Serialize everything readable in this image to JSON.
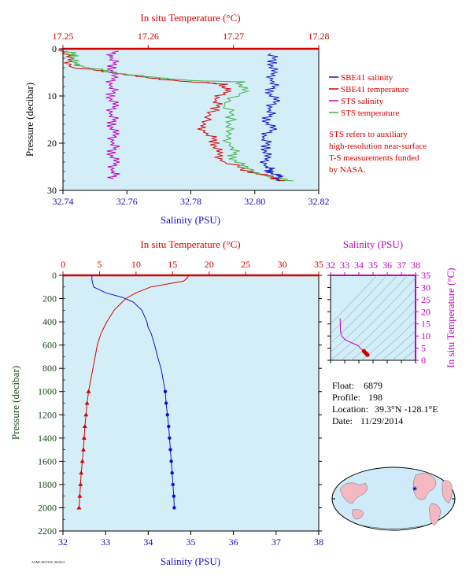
{
  "charts": {
    "top": {
      "top_axis_title": "In situ Temperature (°C)",
      "top_ticks": [
        "17.25",
        "17.26",
        "17.27",
        "17.28"
      ],
      "bottom_axis_title": "Salinity (PSU)",
      "bottom_ticks": [
        "32.74",
        "32.76",
        "32.78",
        "32.80",
        "32.82"
      ],
      "y_axis_title": "Pressure (decibar)",
      "y_ticks": [
        "0",
        "10",
        "20",
        "30"
      ],
      "legend": [
        {
          "label": "SBE41 salinity",
          "color": "#1010c8"
        },
        {
          "label": "SBE41 temperature",
          "color": "#d40000"
        },
        {
          "label": "STS salinity",
          "color": "#c000c0"
        },
        {
          "label": "STS temperature",
          "color": "#40b040"
        }
      ],
      "note": [
        "STS refers to auxiliary",
        "high-resolution near-surface",
        "T-S measurements funded",
        "by NASA."
      ]
    },
    "bottom": {
      "top_axis_title": "In situ Temperature (°C)",
      "top_ticks": [
        "0",
        "5",
        "10",
        "15",
        "20",
        "25",
        "30",
        "35"
      ],
      "bottom_axis_title": "Salinity (PSU)",
      "bottom_ticks": [
        "32",
        "33",
        "34",
        "35",
        "36",
        "37",
        "38"
      ],
      "y_axis_title": "Pressure (decibar)",
      "y_ticks": [
        "0",
        "200",
        "400",
        "600",
        "800",
        "1000",
        "1200",
        "1400",
        "1600",
        "1800",
        "2000",
        "2200"
      ]
    },
    "ts": {
      "top_axis_title": "Salinity (PSU)",
      "top_ticks": [
        "32",
        "33",
        "34",
        "35",
        "36",
        "37",
        "38"
      ],
      "right_axis_title": "In situ Temperature (°C)",
      "right_ticks": [
        "0",
        "5",
        "10",
        "15",
        "20",
        "25",
        "30",
        "35"
      ]
    },
    "info": {
      "float_label": "Float:",
      "float_value": "6879",
      "profile_label": "Profile:",
      "profile_value": "198",
      "location_label": "Location:",
      "location_value": "39.3°N  -128.1°E",
      "date_label": "Date:",
      "date_value": "11/29/2014"
    },
    "footer_code": "AOML/SIO/UW, 06/2014"
  },
  "chart_data": [
    {
      "type": "line",
      "y_axis": "Pressure (decibar)",
      "ylim": [
        30,
        0
      ],
      "x_bottom_lim": [
        32.74,
        32.82
      ],
      "x_top_lim": [
        17.25,
        17.28
      ],
      "series": [
        {
          "name": "SBE41 salinity",
          "axis": "bottom",
          "color": "#1010c8",
          "points": [
            [
              32.805,
              1
            ],
            [
              32.806,
              3
            ],
            [
              32.805,
              5
            ],
            [
              32.806,
              7
            ],
            [
              32.805,
              9
            ],
            [
              32.806,
              11
            ],
            [
              32.805,
              13
            ],
            [
              32.804,
              15
            ],
            [
              32.805,
              17
            ],
            [
              32.803,
              19
            ],
            [
              32.804,
              21
            ],
            [
              32.803,
              23
            ],
            [
              32.804,
              25
            ],
            [
              32.805,
              26
            ],
            [
              32.807,
              27
            ],
            [
              32.808,
              28
            ]
          ]
        },
        {
          "name": "SBE41 temperature",
          "axis": "top",
          "color": "#d40000",
          "points": [
            [
              17.2501,
              0
            ],
            [
              17.2505,
              2
            ],
            [
              17.2512,
              4
            ],
            [
              17.256,
              5
            ],
            [
              17.259,
              6
            ],
            [
              17.265,
              7
            ],
            [
              17.269,
              7.5
            ],
            [
              17.269,
              9
            ],
            [
              17.268,
              11
            ],
            [
              17.268,
              13
            ],
            [
              17.266,
              16
            ],
            [
              17.267,
              18
            ],
            [
              17.268,
              20
            ],
            [
              17.268,
              22
            ],
            [
              17.269,
              24
            ],
            [
              17.272,
              26
            ],
            [
              17.274,
              27
            ],
            [
              17.276,
              28
            ]
          ]
        },
        {
          "name": "STS salinity",
          "axis": "bottom",
          "color": "#c000c0",
          "points": [
            [
              32.7555,
              0.5
            ],
            [
              32.7556,
              2
            ],
            [
              32.7558,
              4
            ],
            [
              32.7552,
              6
            ],
            [
              32.7555,
              8
            ],
            [
              32.7553,
              10
            ],
            [
              32.7556,
              12
            ],
            [
              32.7554,
              14
            ],
            [
              32.7557,
              16
            ],
            [
              32.7556,
              18
            ],
            [
              32.756,
              20
            ],
            [
              32.7556,
              22
            ],
            [
              32.7558,
              24
            ],
            [
              32.756,
              26
            ],
            [
              32.7558,
              27.5
            ]
          ]
        },
        {
          "name": "STS temperature",
          "axis": "top",
          "color": "#40b040",
          "points": [
            [
              17.2505,
              0.5
            ],
            [
              17.2515,
              1.5
            ],
            [
              17.251,
              3
            ],
            [
              17.253,
              4
            ],
            [
              17.256,
              5
            ],
            [
              17.26,
              6
            ],
            [
              17.266,
              6.8
            ],
            [
              17.271,
              7
            ],
            [
              17.271,
              9
            ],
            [
              17.269,
              12
            ],
            [
              17.27,
              15
            ],
            [
              17.269,
              18
            ],
            [
              17.27,
              21
            ],
            [
              17.27,
              23
            ],
            [
              17.271,
              25
            ],
            [
              17.274,
              27
            ],
            [
              17.277,
              28
            ]
          ]
        }
      ]
    },
    {
      "type": "line",
      "y_axis": "Pressure (decibar)",
      "ylim": [
        2200,
        0
      ],
      "x_bottom_lim": [
        32,
        38
      ],
      "x_top_lim": [
        0,
        35
      ],
      "series": [
        {
          "name": "Salinity",
          "axis": "bottom",
          "color": "#1010c8",
          "points": [
            [
              32.68,
              0
            ],
            [
              32.68,
              40
            ],
            [
              32.72,
              100
            ],
            [
              33.0,
              150
            ],
            [
              33.4,
              190
            ],
            [
              33.65,
              230
            ],
            [
              33.85,
              300
            ],
            [
              33.97,
              400
            ],
            [
              34.0,
              450
            ],
            [
              34.07,
              500
            ],
            [
              34.15,
              600
            ],
            [
              34.22,
              700
            ],
            [
              34.3,
              800
            ],
            [
              34.35,
              900
            ],
            [
              34.4,
              1000
            ],
            [
              34.42,
              1100
            ],
            [
              34.45,
              1200
            ],
            [
              34.48,
              1300
            ],
            [
              34.5,
              1400
            ],
            [
              34.52,
              1500
            ],
            [
              34.54,
              1600
            ],
            [
              34.56,
              1700
            ],
            [
              34.58,
              1800
            ],
            [
              34.6,
              1900
            ],
            [
              34.61,
              2000
            ]
          ]
        },
        {
          "name": "Temperature",
          "axis": "top",
          "color": "#d40000",
          "points": [
            [
              17.2,
              0
            ],
            [
              17.0,
              25
            ],
            [
              16.5,
              50
            ],
            [
              12.0,
              100
            ],
            [
              10.0,
              150
            ],
            [
              8.6,
              200
            ],
            [
              7.8,
              250
            ],
            [
              7.0,
              300
            ],
            [
              6.0,
              400
            ],
            [
              5.6,
              450
            ],
            [
              5.2,
              500
            ],
            [
              4.7,
              600
            ],
            [
              4.4,
              700
            ],
            [
              4.1,
              800
            ],
            [
              3.8,
              900
            ],
            [
              3.5,
              1000
            ],
            [
              3.3,
              1100
            ],
            [
              3.15,
              1200
            ],
            [
              3.0,
              1300
            ],
            [
              2.9,
              1400
            ],
            [
              2.8,
              1500
            ],
            [
              2.65,
              1600
            ],
            [
              2.5,
              1700
            ],
            [
              2.4,
              1800
            ],
            [
              2.3,
              1900
            ],
            [
              2.2,
              2000
            ]
          ]
        }
      ]
    },
    {
      "type": "scatter",
      "x_axis": "Salinity (PSU)",
      "y_axis": "In situ Temperature (°C)",
      "xlim": [
        32,
        38
      ],
      "ylim": [
        0,
        35
      ],
      "series": [
        {
          "name": "T-S",
          "color": "#d40000",
          "points": [
            [
              32.68,
              17.2
            ],
            [
              32.7,
              12
            ],
            [
              32.8,
              10
            ],
            [
              33.0,
              8.6
            ],
            [
              33.4,
              7.5
            ],
            [
              33.65,
              6.8
            ],
            [
              33.97,
              6.0
            ],
            [
              34.07,
              5.2
            ],
            [
              34.22,
              4.4
            ],
            [
              34.35,
              3.8
            ],
            [
              34.45,
              3.15
            ],
            [
              34.52,
              2.8
            ],
            [
              34.58,
              2.4
            ],
            [
              34.61,
              2.2
            ]
          ]
        }
      ]
    }
  ]
}
